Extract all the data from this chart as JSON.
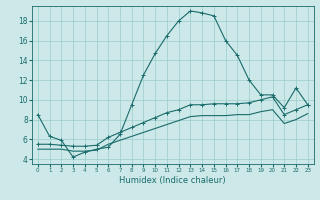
{
  "xlabel": "Humidex (Indice chaleur)",
  "bg_color": "#cce8e8",
  "grid_color": "#99cccc",
  "line_color": "#1a6b6b",
  "xlim": [
    -0.5,
    23.5
  ],
  "ylim": [
    3.5,
    19.5
  ],
  "xticks": [
    0,
    1,
    2,
    3,
    4,
    5,
    6,
    7,
    8,
    9,
    10,
    11,
    12,
    13,
    14,
    15,
    16,
    17,
    18,
    19,
    20,
    21,
    22,
    23
  ],
  "yticks": [
    4,
    6,
    8,
    10,
    12,
    14,
    16,
    18
  ],
  "series1_x": [
    0,
    1,
    2,
    3,
    4,
    5,
    6,
    7,
    8,
    9,
    10,
    11,
    12,
    13,
    14,
    15,
    16,
    17,
    18,
    19,
    20,
    21,
    22,
    23
  ],
  "series1_y": [
    8.5,
    6.3,
    5.9,
    4.2,
    4.7,
    5.0,
    5.2,
    6.5,
    9.5,
    12.5,
    14.7,
    16.5,
    18.0,
    19.0,
    18.8,
    18.5,
    16.0,
    14.5,
    12.0,
    10.5,
    10.5,
    9.2,
    11.2,
    9.5
  ],
  "series2_x": [
    0,
    1,
    2,
    3,
    4,
    5,
    6,
    7,
    8,
    9,
    10,
    11,
    12,
    13,
    14,
    15,
    16,
    17,
    18,
    19,
    20,
    21,
    22,
    23
  ],
  "series2_y": [
    5.5,
    5.5,
    5.4,
    5.3,
    5.3,
    5.4,
    6.2,
    6.7,
    7.2,
    7.7,
    8.2,
    8.7,
    9.0,
    9.5,
    9.5,
    9.6,
    9.6,
    9.6,
    9.7,
    10.0,
    10.3,
    8.5,
    9.0,
    9.5
  ],
  "series3_x": [
    0,
    1,
    2,
    3,
    4,
    5,
    6,
    7,
    8,
    9,
    10,
    11,
    12,
    13,
    14,
    15,
    16,
    17,
    18,
    19,
    20,
    21,
    22,
    23
  ],
  "series3_y": [
    5.0,
    5.0,
    5.0,
    4.8,
    4.8,
    4.9,
    5.5,
    5.9,
    6.3,
    6.7,
    7.1,
    7.5,
    7.9,
    8.3,
    8.4,
    8.4,
    8.4,
    8.5,
    8.5,
    8.8,
    9.0,
    7.6,
    8.0,
    8.6
  ]
}
